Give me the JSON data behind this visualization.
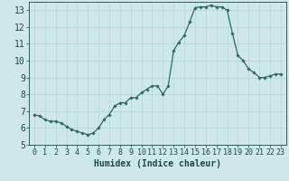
{
  "x": [
    0,
    0.5,
    1,
    1.5,
    2,
    2.5,
    3,
    3.5,
    4,
    4.5,
    5,
    5.5,
    6,
    6.5,
    7,
    7.5,
    8,
    8.5,
    9,
    9.5,
    10,
    10.5,
    11,
    11.5,
    12,
    12.5,
    13,
    13.5,
    14,
    14.5,
    15,
    15.5,
    16,
    16.5,
    17,
    17.5,
    18,
    18.5,
    19,
    19.5,
    20,
    20.5,
    21,
    21.5,
    22,
    22.5,
    23
  ],
  "y": [
    6.8,
    6.7,
    6.5,
    6.4,
    6.4,
    6.3,
    6.1,
    5.9,
    5.8,
    5.7,
    5.6,
    5.7,
    6.0,
    6.5,
    6.8,
    7.3,
    7.5,
    7.5,
    7.8,
    7.8,
    8.1,
    8.3,
    8.5,
    8.5,
    8.0,
    8.5,
    10.6,
    11.1,
    11.5,
    12.3,
    13.15,
    13.2,
    13.2,
    13.3,
    13.2,
    13.2,
    13.0,
    11.6,
    10.3,
    10.0,
    9.5,
    9.3,
    9.0,
    9.0,
    9.1,
    9.2,
    9.2
  ],
  "ylim": [
    5,
    13.5
  ],
  "xlim": [
    -0.5,
    23.5
  ],
  "yticks": [
    5,
    6,
    7,
    8,
    9,
    10,
    11,
    12,
    13
  ],
  "xticks": [
    0,
    1,
    2,
    3,
    4,
    5,
    6,
    7,
    8,
    9,
    10,
    11,
    12,
    13,
    14,
    15,
    16,
    17,
    18,
    19,
    20,
    21,
    22,
    23
  ],
  "xlabel": "Humidex (Indice chaleur)",
  "bg_color": "#cde8e5",
  "line_color": "#2d6b5e",
  "marker_color": "#2d6b5e",
  "grid_color": "#b8d4d0",
  "xlabel_fontsize": 7,
  "tick_fontsize": 6.5
}
